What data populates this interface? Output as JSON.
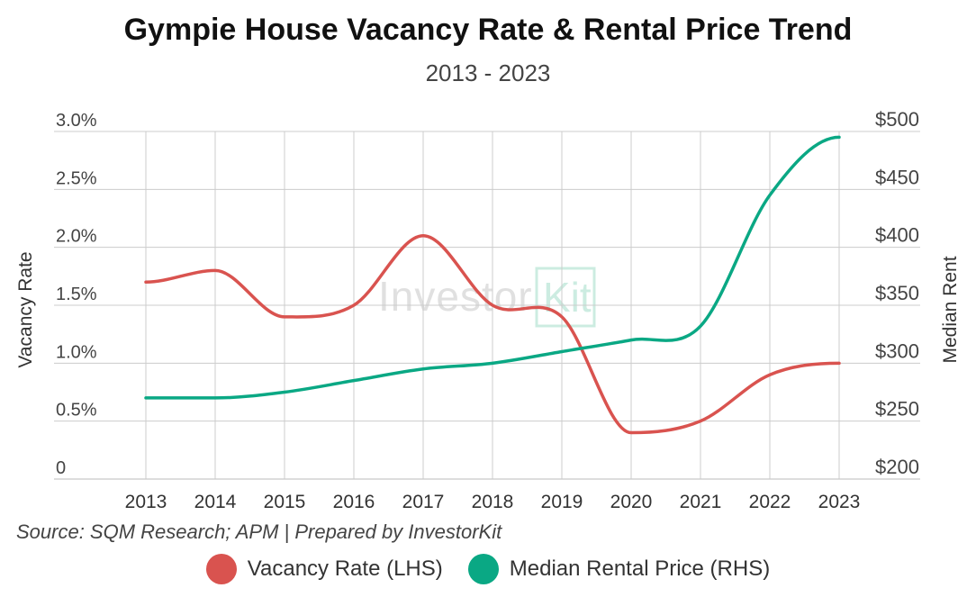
{
  "chart_data": {
    "type": "line",
    "title": "Gympie House Vacancy Rate & Rental Price Trend",
    "subtitle": "2013 - 2023",
    "x": [
      "2013",
      "2014",
      "2015",
      "2016",
      "2017",
      "2018",
      "2019",
      "2020",
      "2021",
      "2022",
      "2023"
    ],
    "y_left": {
      "label": "Vacancy Rate",
      "range": [
        0,
        3.0
      ],
      "ticks": [
        0,
        0.5,
        1.0,
        1.5,
        2.0,
        2.5,
        3.0
      ],
      "tick_labels": [
        "0",
        "0.5%",
        "1.0%",
        "1.5%",
        "2.0%",
        "2.5%",
        "3.0%"
      ]
    },
    "y_right": {
      "label": "Median Rent",
      "range": [
        200,
        500
      ],
      "ticks": [
        200,
        250,
        300,
        350,
        400,
        450,
        500
      ],
      "tick_labels": [
        "$200",
        "$250",
        "$300",
        "$350",
        "$400",
        "$450",
        "$500"
      ]
    },
    "series": [
      {
        "name": "Vacancy Rate (LHS)",
        "axis": "left",
        "color": "#d9534f",
        "values": [
          1.7,
          1.8,
          1.4,
          1.5,
          2.1,
          1.5,
          1.4,
          0.4,
          0.5,
          0.9,
          1.0
        ]
      },
      {
        "name": "Median Rental Price (RHS)",
        "axis": "right",
        "color": "#0aa884",
        "values": [
          270,
          270,
          275,
          285,
          295,
          300,
          310,
          320,
          332,
          445,
          495
        ]
      }
    ],
    "grid": true,
    "legend_position": "bottom"
  },
  "source": "Source: SQM Research; APM | Prepared by InvestorKit",
  "watermark": "InvestorKit"
}
